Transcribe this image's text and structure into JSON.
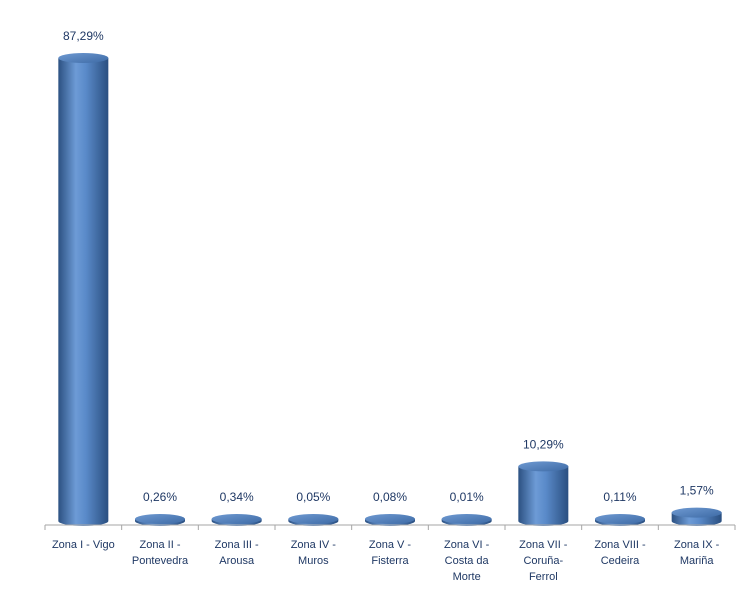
{
  "chart_data": {
    "type": "bar",
    "style": "cylinder",
    "categories": [
      "Zona I - Vigo",
      "Zona II - Pontevedra",
      "Zona III - Arousa",
      "Zona IV - Muros",
      "Zona V - Fisterra",
      "Zona VI - Costa da Morte",
      "Zona VII - Coruña-Ferrol",
      "Zona VIII - Cedeira",
      "Zona IX - Mariña"
    ],
    "category_lines": [
      [
        "Zona I - Vigo"
      ],
      [
        "Zona II -",
        "Pontevedra"
      ],
      [
        "Zona III -",
        "Arousa"
      ],
      [
        "Zona IV -",
        "Muros"
      ],
      [
        "Zona V -",
        "Fisterra"
      ],
      [
        "Zona VI -",
        "Costa da",
        "Morte"
      ],
      [
        "Zona VII -",
        "Coruña-",
        "Ferrol"
      ],
      [
        "Zona VIII -",
        "Cedeira"
      ],
      [
        "Zona IX -",
        "Mariña"
      ]
    ],
    "values": [
      87.29,
      0.26,
      0.34,
      0.05,
      0.08,
      0.01,
      10.29,
      0.11,
      1.57
    ],
    "data_labels": [
      "87,29%",
      "0,26%",
      "0,34%",
      "0,05%",
      "0,08%",
      "0,01%",
      "10,29%",
      "0,11%",
      "1,57%"
    ],
    "ylim": [
      0,
      100
    ],
    "grid": false,
    "legend": "none",
    "colors": {
      "bar": "#4f81bd",
      "bar_dark": "#2c5182",
      "bar_light": "#8fb4e3",
      "label": "#1f3864",
      "axis": "#a6a6a6"
    }
  }
}
